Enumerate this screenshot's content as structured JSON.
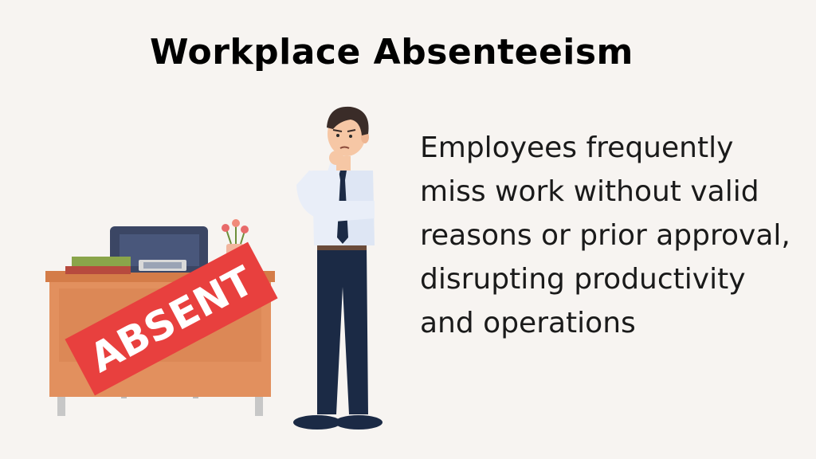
{
  "title": "Workplace Absenteeism",
  "description": "Employees frequently miss work without valid reasons or prior approval, disrupting productivity and operations",
  "stamp_text": "ABSENT",
  "colors": {
    "background": "#f7f4f1",
    "desk": "#e2905e",
    "stamp": "#e8403e",
    "shirt": "#e9eef8",
    "trousers": "#1b2a45",
    "hair": "#3a2c28"
  }
}
